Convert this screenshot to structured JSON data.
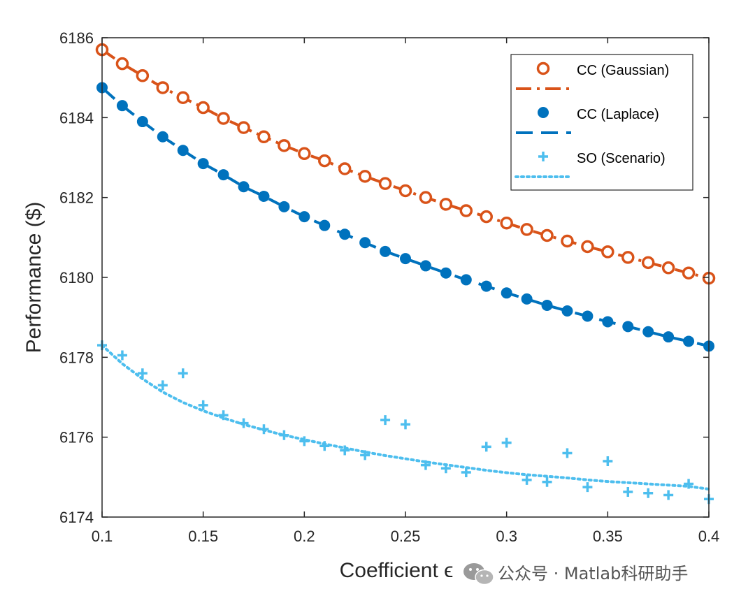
{
  "chart_data": {
    "type": "line",
    "xlabel": "Coefficient ϵ",
    "ylabel": "Performance ($)",
    "xlim": [
      0.1,
      0.4
    ],
    "ylim": [
      6174,
      6186
    ],
    "xticks": [
      0.1,
      0.15,
      0.2,
      0.25,
      0.3,
      0.35,
      0.4
    ],
    "xtick_labels": [
      "0.1",
      "0.15",
      "0.2",
      "0.25",
      "0.3",
      "0.35",
      "0.4"
    ],
    "yticks": [
      6174,
      6176,
      6178,
      6180,
      6182,
      6184,
      6186
    ],
    "ytick_labels": [
      "6174",
      "6176",
      "6178",
      "6180",
      "6182",
      "6184",
      "6186"
    ],
    "grid": false,
    "legend_position": "top-right",
    "x": [
      0.1,
      0.11,
      0.12,
      0.13,
      0.14,
      0.15,
      0.16,
      0.17,
      0.18,
      0.19,
      0.2,
      0.21,
      0.22,
      0.23,
      0.24,
      0.25,
      0.26,
      0.27,
      0.28,
      0.29,
      0.3,
      0.31,
      0.32,
      0.33,
      0.34,
      0.35,
      0.36,
      0.37,
      0.38,
      0.39,
      0.4
    ],
    "series": [
      {
        "name": "CC (Gaussian)",
        "color": "#D95319",
        "marker": "open-circle",
        "line": "dash-dot",
        "values": [
          6185.7,
          6185.35,
          6185.05,
          6184.75,
          6184.5,
          6184.25,
          6183.98,
          6183.75,
          6183.52,
          6183.3,
          6183.1,
          6182.92,
          6182.72,
          6182.53,
          6182.35,
          6182.17,
          6182.0,
          6181.83,
          6181.67,
          6181.52,
          6181.36,
          6181.2,
          6181.05,
          6180.91,
          6180.77,
          6180.64,
          6180.5,
          6180.37,
          6180.24,
          6180.11,
          6179.98
        ]
      },
      {
        "name": "CC (Laplace)",
        "color": "#0072BD",
        "marker": "filled-circle",
        "line": "dashed",
        "values": [
          6184.75,
          6184.3,
          6183.9,
          6183.52,
          6183.18,
          6182.85,
          6182.57,
          6182.27,
          6182.03,
          6181.77,
          6181.52,
          6181.3,
          6181.08,
          6180.87,
          6180.65,
          6180.47,
          6180.29,
          6180.11,
          6179.94,
          6179.78,
          6179.61,
          6179.46,
          6179.3,
          6179.16,
          6179.03,
          6178.89,
          6178.77,
          6178.64,
          6178.51,
          6178.4,
          6178.28
        ]
      },
      {
        "name": "SO (Scenario)",
        "color": "#4DBEEE",
        "marker": "plus",
        "line": "dotted",
        "values": [
          6178.3,
          6178.05,
          6177.6,
          6177.3,
          6177.6,
          6176.8,
          6176.55,
          6176.35,
          6176.2,
          6176.05,
          6175.9,
          6175.78,
          6175.67,
          6175.55,
          6176.43,
          6176.32,
          6175.3,
          6175.22,
          6175.12,
          6175.76,
          6175.86,
          6174.93,
          6174.88,
          6175.6,
          6174.75,
          6175.4,
          6174.63,
          6174.6,
          6174.55,
          6174.83,
          6174.45
        ],
        "trend": [
          6178.3,
          6177.84,
          6177.46,
          6177.13,
          6176.87,
          6176.66,
          6176.48,
          6176.32,
          6176.18,
          6176.05,
          6175.94,
          6175.83,
          6175.73,
          6175.63,
          6175.54,
          6175.46,
          6175.38,
          6175.31,
          6175.24,
          6175.17,
          6175.11,
          6175.06,
          6175.02,
          6174.98,
          6174.93,
          6174.89,
          6174.86,
          6174.83,
          6174.8,
          6174.77,
          6174.7
        ]
      }
    ]
  },
  "watermark": {
    "icon": "wechat-icon",
    "text": "公众号 · Matlab科研助手"
  }
}
